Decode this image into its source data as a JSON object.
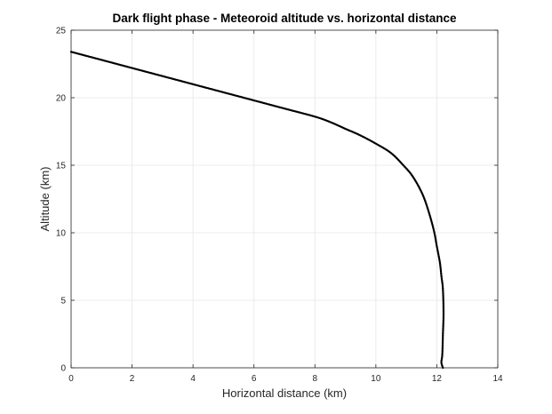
{
  "chart_data": {
    "type": "line",
    "title": "Dark flight phase - Meteoroid altitude vs. horizontal distance",
    "xlabel": "Horizontal distance (km)",
    "ylabel": "Altitude (km)",
    "xlim": [
      0,
      14
    ],
    "ylim": [
      0,
      25
    ],
    "xticks": [
      0,
      2,
      4,
      6,
      8,
      10,
      12,
      14
    ],
    "yticks": [
      0,
      5,
      10,
      15,
      20,
      25
    ],
    "grid": true,
    "colors": {
      "line": "#000000",
      "grid": "#e6e6e6",
      "axis": "#262626"
    },
    "series": [
      {
        "x": [
          0,
          1,
          2,
          3,
          4,
          5,
          6,
          7,
          8,
          8.5,
          9,
          9.5,
          10,
          10.5,
          10.9,
          11.2,
          11.5,
          11.7,
          11.9,
          12.0,
          12.1,
          12.15,
          12.2,
          12.22,
          12.2,
          12.18,
          12.15,
          12.2
        ],
        "y": [
          23.4,
          22.8,
          22.2,
          21.6,
          21.0,
          20.4,
          19.8,
          19.2,
          18.6,
          18.2,
          17.7,
          17.2,
          16.6,
          15.9,
          15.0,
          14.2,
          13.0,
          11.8,
          10.2,
          9.0,
          7.8,
          6.8,
          5.8,
          4.0,
          2.5,
          1.0,
          0.4,
          0.0
        ]
      }
    ]
  }
}
